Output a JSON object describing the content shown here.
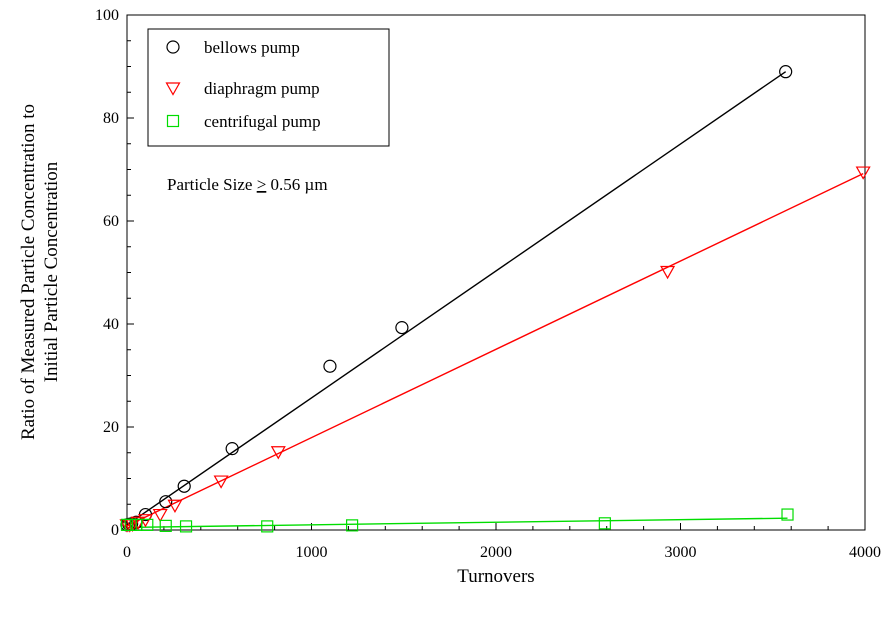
{
  "chart_data": {
    "type": "scatter",
    "xlabel": "Turnovers",
    "ylabel": [
      "Ratio of Measured Particle Concentration to",
      "Initial Particle Concentration"
    ],
    "xlim": [
      0,
      4000
    ],
    "ylim": [
      0,
      100
    ],
    "x_ticks": [
      "0",
      "1000",
      "2000",
      "3000",
      "4000"
    ],
    "y_ticks": [
      "0",
      "20",
      "40",
      "60",
      "80",
      "100"
    ],
    "grid": false,
    "legend_position": "top-left",
    "annotation": {
      "prefix": "Particle Size ",
      "symbol": ">",
      "suffix": " 0.56 µm"
    },
    "series": [
      {
        "name": "bellows pump",
        "marker": "circle",
        "color": "#000000",
        "points": [
          [
            0,
            1.0
          ],
          [
            10,
            1.1
          ],
          [
            25,
            1.2
          ],
          [
            50,
            1.5
          ],
          [
            100,
            3.0
          ],
          [
            210,
            5.5
          ],
          [
            310,
            8.5
          ],
          [
            570,
            15.8
          ],
          [
            1100,
            31.8
          ],
          [
            1490,
            39.3
          ],
          [
            3570,
            89.0
          ]
        ],
        "fit": [
          [
            0,
            1.0
          ],
          [
            3570,
            89.0
          ]
        ]
      },
      {
        "name": "diaphragm pump",
        "marker": "triangle-down",
        "color": "#ff0000",
        "points": [
          [
            0,
            1.0
          ],
          [
            15,
            1.0
          ],
          [
            30,
            1.1
          ],
          [
            60,
            1.5
          ],
          [
            100,
            2.0
          ],
          [
            180,
            3.0
          ],
          [
            260,
            4.8
          ],
          [
            510,
            9.5
          ],
          [
            820,
            15.2
          ],
          [
            2930,
            50.2
          ],
          [
            3990,
            69.5
          ]
        ],
        "fit": [
          [
            0,
            0.8
          ],
          [
            3990,
            69.2
          ]
        ]
      },
      {
        "name": "centrifugal pump",
        "marker": "square",
        "color": "#00dd00",
        "points": [
          [
            0,
            1.0
          ],
          [
            20,
            1.0
          ],
          [
            50,
            1.0
          ],
          [
            110,
            1.0
          ],
          [
            210,
            0.8
          ],
          [
            320,
            0.7
          ],
          [
            760,
            0.7
          ],
          [
            1220,
            0.9
          ],
          [
            2590,
            1.3
          ],
          [
            3580,
            3.0
          ]
        ],
        "fit": [
          [
            0,
            0.5
          ],
          [
            3580,
            2.3
          ]
        ]
      }
    ]
  }
}
